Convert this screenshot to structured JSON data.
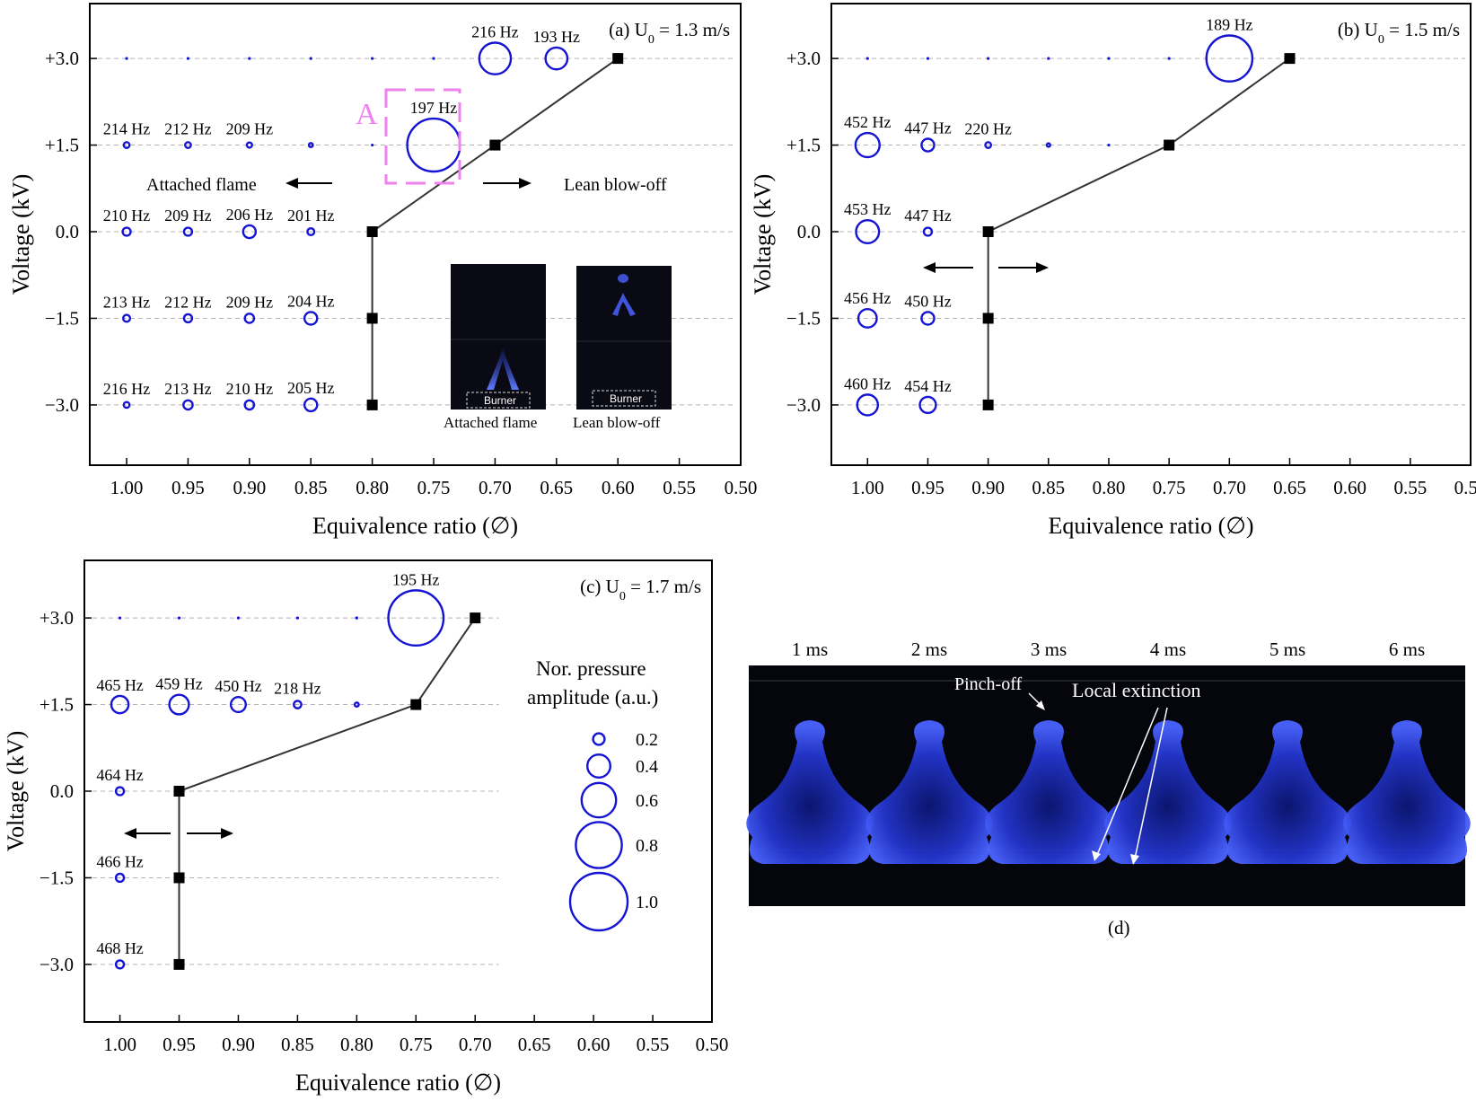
{
  "colors": {
    "bubble": "#1414d2",
    "line": "#333333",
    "grid": "#b4b4b4",
    "annotation_box": "#ee82ee",
    "photo_bg": "#0a0a14",
    "flame": "#2a3cf0"
  },
  "chart_data": [
    {
      "id": "a",
      "type": "scatter",
      "title": "(a) U",
      "title_sub": "0",
      "title_rest": " = 1.3 m/s",
      "xlabel": "Equivalence ratio (∅)",
      "ylabel": "Voltage (kV)",
      "xlim": [
        1.03,
        0.5
      ],
      "ylim": [
        -3.9,
        3.9
      ],
      "xticks": [
        1.0,
        0.95,
        0.9,
        0.85,
        0.8,
        0.75,
        0.7,
        0.65,
        0.6,
        0.55,
        0.5
      ],
      "xtick_labels": [
        "1.00",
        "0.95",
        "0.90",
        "0.85",
        "0.80",
        "0.75",
        "0.70",
        "0.65",
        "0.60",
        "0.55",
        "0.50"
      ],
      "yticks": [
        3.0,
        1.5,
        0.0,
        -1.5,
        -3.0
      ],
      "ytick_labels": [
        "+3.0",
        "+1.5",
        "0.0",
        "−1.5",
        "−3.0"
      ],
      "bubbles": [
        {
          "x": 1.0,
          "y": 3.0,
          "amp": 0.02,
          "label": ""
        },
        {
          "x": 0.95,
          "y": 3.0,
          "amp": 0.02,
          "label": ""
        },
        {
          "x": 0.9,
          "y": 3.0,
          "amp": 0.02,
          "label": ""
        },
        {
          "x": 0.85,
          "y": 3.0,
          "amp": 0.02,
          "label": ""
        },
        {
          "x": 0.8,
          "y": 3.0,
          "amp": 0.02,
          "label": ""
        },
        {
          "x": 0.75,
          "y": 3.0,
          "amp": 0.02,
          "label": ""
        },
        {
          "x": 0.7,
          "y": 3.0,
          "amp": 0.55,
          "label": "216 Hz"
        },
        {
          "x": 0.65,
          "y": 3.0,
          "amp": 0.38,
          "label": "193 Hz"
        },
        {
          "x": 1.0,
          "y": 1.5,
          "amp": 0.1,
          "label": "214 Hz"
        },
        {
          "x": 0.95,
          "y": 1.5,
          "amp": 0.1,
          "label": "212 Hz"
        },
        {
          "x": 0.9,
          "y": 1.5,
          "amp": 0.09,
          "label": "209 Hz"
        },
        {
          "x": 0.85,
          "y": 1.5,
          "amp": 0.07,
          "label": ""
        },
        {
          "x": 0.8,
          "y": 1.5,
          "amp": 0.02,
          "label": ""
        },
        {
          "x": 0.75,
          "y": 1.5,
          "amp": 0.92,
          "label": "197 Hz"
        },
        {
          "x": 1.0,
          "y": 0.0,
          "amp": 0.14,
          "label": "210 Hz"
        },
        {
          "x": 0.95,
          "y": 0.0,
          "amp": 0.14,
          "label": "209 Hz"
        },
        {
          "x": 0.9,
          "y": 0.0,
          "amp": 0.22,
          "label": "206 Hz"
        },
        {
          "x": 0.85,
          "y": 0.0,
          "amp": 0.12,
          "label": "201 Hz"
        },
        {
          "x": 1.0,
          "y": -1.5,
          "amp": 0.12,
          "label": "213 Hz"
        },
        {
          "x": 0.95,
          "y": -1.5,
          "amp": 0.14,
          "label": "212 Hz"
        },
        {
          "x": 0.9,
          "y": -1.5,
          "amp": 0.16,
          "label": "209 Hz"
        },
        {
          "x": 0.85,
          "y": -1.5,
          "amp": 0.22,
          "label": "204 Hz"
        },
        {
          "x": 1.0,
          "y": -3.0,
          "amp": 0.1,
          "label": "216 Hz"
        },
        {
          "x": 0.95,
          "y": -3.0,
          "amp": 0.16,
          "label": "213 Hz"
        },
        {
          "x": 0.9,
          "y": -3.0,
          "amp": 0.16,
          "label": "210 Hz"
        },
        {
          "x": 0.85,
          "y": -3.0,
          "amp": 0.22,
          "label": "205 Hz"
        }
      ],
      "boundary": [
        {
          "x": 0.8,
          "y": -3.0
        },
        {
          "x": 0.8,
          "y": -1.5
        },
        {
          "x": 0.8,
          "y": 0.0
        },
        {
          "x": 0.7,
          "y": 1.5
        },
        {
          "x": 0.6,
          "y": 3.0
        }
      ],
      "annotations": {
        "region_left": "Attached flame",
        "region_right": "Lean blow-off",
        "box_label": "A",
        "photo_left": "Attached flame",
        "photo_right": "Lean blow-off",
        "burner": "Burner"
      }
    },
    {
      "id": "b",
      "type": "scatter",
      "title": "(b) U",
      "title_sub": "0",
      "title_rest": " = 1.5 m/s",
      "xlabel": "Equivalence ratio (∅)",
      "ylabel": "Voltage (kV)",
      "xlim": [
        1.03,
        0.5
      ],
      "ylim": [
        -3.9,
        3.9
      ],
      "xticks": [
        1.0,
        0.95,
        0.9,
        0.85,
        0.8,
        0.75,
        0.7,
        0.65,
        0.6,
        0.55,
        0.5
      ],
      "xtick_labels": [
        "1.00",
        "0.95",
        "0.90",
        "0.85",
        "0.80",
        "0.75",
        "0.70",
        "0.65",
        "0.60",
        "0.55",
        "0.50"
      ],
      "yticks": [
        3.0,
        1.5,
        0.0,
        -1.5,
        -3.0
      ],
      "ytick_labels": [
        "+3.0",
        "+1.5",
        "0.0",
        "−1.5",
        "−3.0"
      ],
      "bubbles": [
        {
          "x": 1.0,
          "y": 3.0,
          "amp": 0.02,
          "label": ""
        },
        {
          "x": 0.95,
          "y": 3.0,
          "amp": 0.02,
          "label": ""
        },
        {
          "x": 0.9,
          "y": 3.0,
          "amp": 0.02,
          "label": ""
        },
        {
          "x": 0.85,
          "y": 3.0,
          "amp": 0.02,
          "label": ""
        },
        {
          "x": 0.8,
          "y": 3.0,
          "amp": 0.02,
          "label": ""
        },
        {
          "x": 0.75,
          "y": 3.0,
          "amp": 0.02,
          "label": ""
        },
        {
          "x": 0.7,
          "y": 3.0,
          "amp": 0.8,
          "label": "189 Hz"
        },
        {
          "x": 1.0,
          "y": 1.5,
          "amp": 0.42,
          "label": "452 Hz"
        },
        {
          "x": 0.95,
          "y": 1.5,
          "amp": 0.22,
          "label": "447 Hz"
        },
        {
          "x": 0.9,
          "y": 1.5,
          "amp": 0.1,
          "label": "220 Hz"
        },
        {
          "x": 0.85,
          "y": 1.5,
          "amp": 0.06,
          "label": ""
        },
        {
          "x": 0.8,
          "y": 1.5,
          "amp": 0.03,
          "label": ""
        },
        {
          "x": 1.0,
          "y": 0.0,
          "amp": 0.4,
          "label": "453 Hz"
        },
        {
          "x": 0.95,
          "y": 0.0,
          "amp": 0.14,
          "label": "447 Hz"
        },
        {
          "x": 1.0,
          "y": -1.5,
          "amp": 0.32,
          "label": "456 Hz"
        },
        {
          "x": 0.95,
          "y": -1.5,
          "amp": 0.22,
          "label": "450 Hz"
        },
        {
          "x": 1.0,
          "y": -3.0,
          "amp": 0.36,
          "label": "460 Hz"
        },
        {
          "x": 0.95,
          "y": -3.0,
          "amp": 0.28,
          "label": "454 Hz"
        }
      ],
      "boundary": [
        {
          "x": 0.9,
          "y": -3.0
        },
        {
          "x": 0.9,
          "y": -1.5
        },
        {
          "x": 0.9,
          "y": 0.0
        },
        {
          "x": 0.75,
          "y": 1.5
        },
        {
          "x": 0.65,
          "y": 3.0
        }
      ],
      "annotations": {}
    },
    {
      "id": "c",
      "type": "scatter",
      "title": "(c) U",
      "title_sub": "0",
      "title_rest": " = 1.7 m/s",
      "xlabel": "Equivalence ratio (∅)",
      "ylabel": "Voltage (kV)",
      "xlim": [
        1.03,
        0.5
      ],
      "ylim": [
        -3.9,
        3.9
      ],
      "xticks": [
        1.0,
        0.95,
        0.9,
        0.85,
        0.8,
        0.75,
        0.7,
        0.65,
        0.6,
        0.55,
        0.5
      ],
      "xtick_labels": [
        "1.00",
        "0.95",
        "0.90",
        "0.85",
        "0.80",
        "0.75",
        "0.70",
        "0.65",
        "0.60",
        "0.55",
        "0.50"
      ],
      "yticks": [
        3.0,
        1.5,
        0.0,
        -1.5,
        -3.0
      ],
      "ytick_labels": [
        "+3.0",
        "+1.5",
        "0.0",
        "−1.5",
        "−3.0"
      ],
      "bubbles": [
        {
          "x": 1.0,
          "y": 3.0,
          "amp": 0.02,
          "label": ""
        },
        {
          "x": 0.95,
          "y": 3.0,
          "amp": 0.02,
          "label": ""
        },
        {
          "x": 0.9,
          "y": 3.0,
          "amp": 0.02,
          "label": ""
        },
        {
          "x": 0.85,
          "y": 3.0,
          "amp": 0.02,
          "label": ""
        },
        {
          "x": 0.8,
          "y": 3.0,
          "amp": 0.04,
          "label": ""
        },
        {
          "x": 0.75,
          "y": 3.0,
          "amp": 0.96,
          "label": "195 Hz"
        },
        {
          "x": 1.0,
          "y": 1.5,
          "amp": 0.3,
          "label": "465 Hz"
        },
        {
          "x": 0.95,
          "y": 1.5,
          "amp": 0.34,
          "label": "459 Hz"
        },
        {
          "x": 0.9,
          "y": 1.5,
          "amp": 0.26,
          "label": "450 Hz"
        },
        {
          "x": 0.85,
          "y": 1.5,
          "amp": 0.13,
          "label": "218 Hz"
        },
        {
          "x": 0.8,
          "y": 1.5,
          "amp": 0.07,
          "label": ""
        },
        {
          "x": 1.0,
          "y": 0.0,
          "amp": 0.14,
          "label": "464 Hz"
        },
        {
          "x": 1.0,
          "y": -1.5,
          "amp": 0.14,
          "label": "466 Hz"
        },
        {
          "x": 1.0,
          "y": -3.0,
          "amp": 0.14,
          "label": "468 Hz"
        }
      ],
      "boundary": [
        {
          "x": 0.95,
          "y": -3.0
        },
        {
          "x": 0.95,
          "y": -1.5
        },
        {
          "x": 0.95,
          "y": 0.0
        },
        {
          "x": 0.75,
          "y": 1.5
        },
        {
          "x": 0.7,
          "y": 3.0
        }
      ],
      "annotations": {},
      "legend": {
        "title_line1": "Nor. pressure",
        "title_line2": "amplitude (a.u.)",
        "entries": [
          {
            "amp": 0.2,
            "label": "0.2"
          },
          {
            "amp": 0.4,
            "label": "0.4"
          },
          {
            "amp": 0.6,
            "label": "0.6"
          },
          {
            "amp": 0.8,
            "label": "0.8"
          },
          {
            "amp": 1.0,
            "label": "1.0"
          }
        ]
      }
    }
  ],
  "panel_d": {
    "caption": "(d)",
    "times": [
      "1 ms",
      "2 ms",
      "3 ms",
      "4 ms",
      "5 ms",
      "6 ms"
    ],
    "pinch_label": "Pinch-off",
    "extinction_label": "Local extinction"
  }
}
